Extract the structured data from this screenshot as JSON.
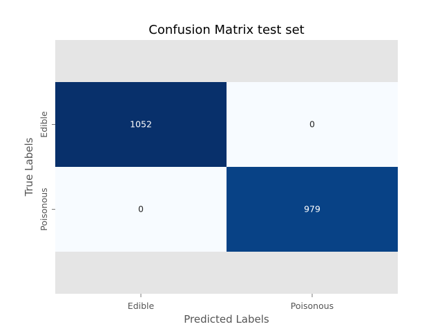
{
  "chart_data": {
    "type": "heatmap",
    "title": "Confusion Matrix test set",
    "xlabel": "Predicted Labels",
    "ylabel": "True Labels",
    "x_categories": [
      "Edible",
      "Poisonous"
    ],
    "y_categories": [
      "Edible",
      "Poisonous"
    ],
    "values": [
      [
        1052,
        0
      ],
      [
        0,
        979
      ]
    ],
    "colormap": "Blues",
    "colorbar": false,
    "grid": false,
    "colors": {
      "plot_background": "#e5e5e5",
      "low": "#f7fbff",
      "high": "#08306b",
      "annotation_dark": "#262626",
      "annotation_light": "#ffffff",
      "label_text": "#555555"
    }
  }
}
